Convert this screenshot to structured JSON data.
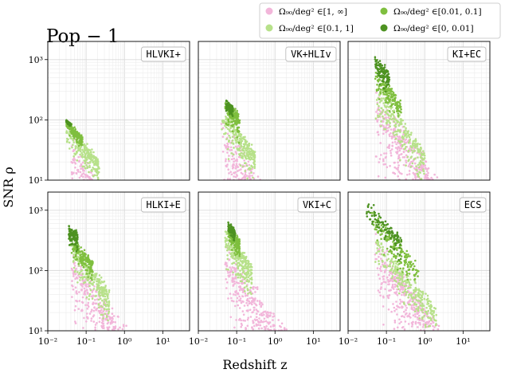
{
  "figure": {
    "title": "Pop − 1",
    "xlabel": "Redshift  z",
    "ylabel": "SNR  ρ"
  },
  "legend": {
    "placement": "top-right",
    "items": [
      {
        "label": "Ω₉₀/deg² ∈[1, ∞]",
        "color": "#f2b6da"
      },
      {
        "label": "Ω₉₀/deg² ∈[0.01, 0.1]",
        "color": "#7fbf3f"
      },
      {
        "label": "Ω₉₀/deg² ∈[0.1, 1]",
        "color": "#b7e18a"
      },
      {
        "label": "Ω₉₀/deg² ∈[0, 0.01]",
        "color": "#4d9221"
      }
    ]
  },
  "axes": {
    "x": {
      "scale": "log",
      "lim": [
        0.01,
        50
      ],
      "ticks": [
        {
          "v": 0.01,
          "label": "10⁻²"
        },
        {
          "v": 0.1,
          "label": "10⁻¹"
        },
        {
          "v": 1,
          "label": "10⁰"
        },
        {
          "v": 10,
          "label": "10¹"
        }
      ]
    },
    "y": {
      "scale": "log",
      "lim": [
        10,
        2000
      ],
      "ticks": [
        {
          "v": 10,
          "label": "10¹"
        },
        {
          "v": 100,
          "label": "10²"
        },
        {
          "v": 1000,
          "label": "10³"
        }
      ]
    },
    "grid": true
  },
  "chart_data": [
    {
      "type": "scatter",
      "panel": "HLVKI+",
      "series": [
        {
          "name": "Ω₉₀/deg² ∈[1, ∞]",
          "color": "#f2b6da",
          "region": {
            "z_min": 0.04,
            "z_max": 0.9,
            "snr_at_zmin": 45,
            "slope": -0.95,
            "spread_down": [
              0,
              1.4
            ],
            "spread_up": 0.18
          }
        },
        {
          "name": "Ω₉₀/deg² ∈[0.1, 1]",
          "color": "#b7e18a",
          "region": {
            "z_min": 0.03,
            "z_max": 0.22,
            "snr_at_zmin": 90,
            "slope": -0.75,
            "spread_down": [
              0,
              0.45
            ],
            "spread_up": 0.08
          }
        },
        {
          "name": "Ω₉₀/deg² ∈[0.01, 0.1]",
          "color": "#7fbf3f",
          "region": {
            "z_min": 0.03,
            "z_max": 0.08,
            "snr_at_zmin": 95,
            "slope": -0.6,
            "spread_down": [
              0,
              0.2
            ],
            "spread_up": 0.05
          }
        },
        {
          "name": "Ω₉₀/deg² ∈[0, 0.01]",
          "color": "#4d9221",
          "region": {
            "z_min": 0.03,
            "z_max": 0.04,
            "snr_at_zmin": 100,
            "slope": -0.5,
            "spread_down": [
              0,
              0.05
            ],
            "spread_up": 0.0
          }
        }
      ]
    },
    {
      "type": "scatter",
      "panel": "VK+HLIv",
      "series": [
        {
          "name": "Ω₉₀/deg² ∈[1, ∞]",
          "color": "#f2b6da",
          "region": {
            "z_min": 0.04,
            "z_max": 2.0,
            "snr_at_zmin": 90,
            "slope": -0.95,
            "spread_down": [
              0,
              1.4
            ],
            "spread_up": 0.2
          }
        },
        {
          "name": "Ω₉₀/deg² ∈[0.1, 1]",
          "color": "#b7e18a",
          "region": {
            "z_min": 0.04,
            "z_max": 0.3,
            "snr_at_zmin": 150,
            "slope": -0.8,
            "spread_down": [
              0,
              0.55
            ],
            "spread_up": 0.1
          }
        },
        {
          "name": "Ω₉₀/deg² ∈[0.01, 0.1]",
          "color": "#7fbf3f",
          "region": {
            "z_min": 0.05,
            "z_max": 0.12,
            "snr_at_zmin": 200,
            "slope": -0.7,
            "spread_down": [
              0,
              0.4
            ],
            "spread_up": 0.08
          }
        },
        {
          "name": "Ω₉₀/deg² ∈[0, 0.01]",
          "color": "#4d9221",
          "region": {
            "z_min": 0.05,
            "z_max": 0.08,
            "snr_at_zmin": 220,
            "slope": -0.6,
            "spread_down": [
              0,
              0.2
            ],
            "spread_up": 0.02
          }
        }
      ]
    },
    {
      "type": "scatter",
      "panel": "KI+EC",
      "series": [
        {
          "name": "Ω₉₀/deg² ∈[1, ∞]",
          "color": "#f2b6da",
          "region": {
            "z_min": 0.05,
            "z_max": 4.0,
            "snr_at_zmin": 300,
            "slope": -0.9,
            "spread_down": [
              0,
              1.2
            ],
            "spread_up": 0.15
          }
        },
        {
          "name": "Ω₉₀/deg² ∈[0.1, 1]",
          "color": "#b7e18a",
          "region": {
            "z_min": 0.05,
            "z_max": 1.0,
            "snr_at_zmin": 420,
            "slope": -0.9,
            "spread_down": [
              0,
              0.6
            ],
            "spread_up": 0.1
          }
        },
        {
          "name": "Ω₉₀/deg² ∈[0.01, 0.1]",
          "color": "#7fbf3f",
          "region": {
            "z_min": 0.05,
            "z_max": 0.25,
            "snr_at_zmin": 600,
            "slope": -0.8,
            "spread_down": [
              0,
              0.35
            ],
            "spread_up": 0.12
          }
        },
        {
          "name": "Ω₉₀/deg² ∈[0, 0.01]",
          "color": "#4d9221",
          "region": {
            "z_min": 0.05,
            "z_max": 0.12,
            "snr_at_zmin": 900,
            "slope": -0.7,
            "spread_down": [
              0,
              0.3
            ],
            "spread_up": 0.15
          }
        }
      ]
    },
    {
      "type": "scatter",
      "panel": "HLKI+E",
      "series": [
        {
          "name": "Ω₉₀/deg² ∈[1, ∞]",
          "color": "#f2b6da",
          "region": {
            "z_min": 0.04,
            "z_max": 3.5,
            "snr_at_zmin": 200,
            "slope": -0.9,
            "spread_down": [
              0,
              1.2
            ],
            "spread_up": 0.15
          }
        },
        {
          "name": "Ω₉₀/deg² ∈[0.1, 1]",
          "color": "#b7e18a",
          "region": {
            "z_min": 0.04,
            "z_max": 0.4,
            "snr_at_zmin": 300,
            "slope": -0.85,
            "spread_down": [
              0,
              0.55
            ],
            "spread_up": 0.1
          }
        },
        {
          "name": "Ω₉₀/deg² ∈[0.01, 0.1]",
          "color": "#7fbf3f",
          "region": {
            "z_min": 0.04,
            "z_max": 0.15,
            "snr_at_zmin": 330,
            "slope": -0.7,
            "spread_down": [
              0,
              0.3
            ],
            "spread_up": 0.08
          }
        },
        {
          "name": "Ω₉₀/deg² ∈[0, 0.01]",
          "color": "#4d9221",
          "region": {
            "z_min": 0.035,
            "z_max": 0.06,
            "snr_at_zmin": 500,
            "slope": -0.6,
            "spread_down": [
              0,
              0.3
            ],
            "spread_up": 0.1
          }
        }
      ]
    },
    {
      "type": "scatter",
      "panel": "VKI+C",
      "series": [
        {
          "name": "Ω₉₀/deg² ∈[1, ∞]",
          "color": "#f2b6da",
          "region": {
            "z_min": 0.05,
            "z_max": 3.5,
            "snr_at_zmin": 250,
            "slope": -0.9,
            "spread_down": [
              0,
              1.3
            ],
            "spread_up": 0.15
          }
        },
        {
          "name": "Ω₉₀/deg² ∈[0.1, 1]",
          "color": "#b7e18a",
          "region": {
            "z_min": 0.05,
            "z_max": 0.25,
            "snr_at_zmin": 450,
            "slope": -0.85,
            "spread_down": [
              0,
              0.6
            ],
            "spread_up": 0.12
          }
        },
        {
          "name": "Ω₉₀/deg² ∈[0.01, 0.1]",
          "color": "#7fbf3f",
          "region": {
            "z_min": 0.06,
            "z_max": 0.12,
            "snr_at_zmin": 500,
            "slope": -0.8,
            "spread_down": [
              0,
              0.3
            ],
            "spread_up": 0.1
          }
        },
        {
          "name": "Ω₉₀/deg² ∈[0, 0.01]",
          "color": "#4d9221",
          "region": {
            "z_min": 0.06,
            "z_max": 0.09,
            "snr_at_zmin": 600,
            "slope": -0.7,
            "spread_down": [
              0,
              0.2
            ],
            "spread_up": 0.05
          }
        }
      ]
    },
    {
      "type": "scatter",
      "panel": "ECS",
      "series": [
        {
          "name": "Ω₉₀/deg² ∈[1, ∞]",
          "color": "#f2b6da",
          "region": {
            "z_min": 0.05,
            "z_max": 4.0,
            "snr_at_zmin": 350,
            "slope": -0.85,
            "spread_down": [
              0,
              1.2
            ],
            "spread_up": 0.12
          }
        },
        {
          "name": "Ω₉₀/deg² ∈[0.1, 1]",
          "color": "#b7e18a",
          "region": {
            "z_min": 0.05,
            "z_max": 2.0,
            "snr_at_zmin": 350,
            "slope": -0.75,
            "spread_down": [
              0,
              0.5
            ],
            "spread_up": 0.1
          }
        },
        {
          "name": "Ω₉₀/deg² ∈[0.01, 0.1]",
          "color": "#7fbf3f",
          "region": {
            "z_min": 0.04,
            "z_max": 0.7,
            "snr_at_zmin": 900,
            "slope": -0.75,
            "spread_down": [
              0,
              0.45
            ],
            "spread_up": 0.12
          }
        },
        {
          "name": "Ω₉₀/deg² ∈[0, 0.01]",
          "color": "#4d9221",
          "region": {
            "z_min": 0.03,
            "z_max": 0.25,
            "snr_at_zmin": 1300,
            "slope": -0.7,
            "spread_down": [
              0,
              0.35
            ],
            "spread_up": 0.12
          }
        }
      ]
    }
  ]
}
